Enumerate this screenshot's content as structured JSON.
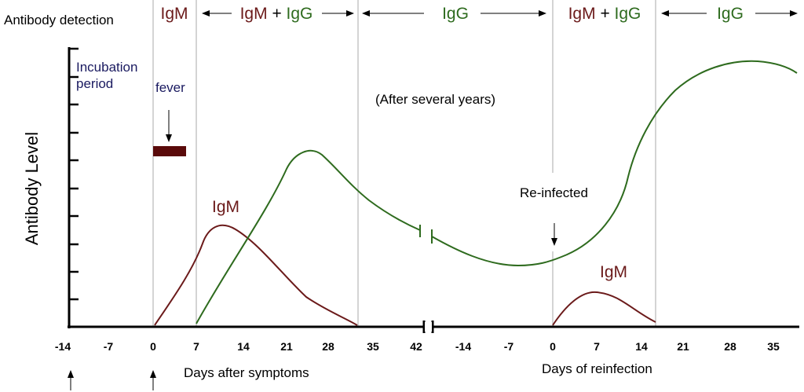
{
  "header": {
    "title": "Antibody detection"
  },
  "phases": [
    {
      "texts": [
        "IgM"
      ]
    },
    {
      "texts": [
        "IgM",
        "+",
        "IgG"
      ]
    },
    {
      "texts": [
        "IgG"
      ]
    },
    {
      "texts": [
        "IgM",
        "+",
        "IgG"
      ]
    },
    {
      "texts": [
        "IgG"
      ]
    }
  ],
  "y_axis": {
    "label": "Antibody Level"
  },
  "annotations": {
    "incubation": [
      "Incubation",
      "period"
    ],
    "fever": "fever",
    "after": "(After several years)",
    "reinfected": "Re-infected",
    "igm_first": "IgM",
    "igm_second": "IgM"
  },
  "x_ticks": [
    "-14",
    "-7",
    "0",
    "7",
    "14",
    "21",
    "28",
    "35",
    "42",
    "-14",
    "-7",
    "0",
    "7",
    "14",
    "21",
    "28",
    "35"
  ],
  "x_labels": [
    "Days after symptoms",
    "Days of reinfection"
  ]
}
